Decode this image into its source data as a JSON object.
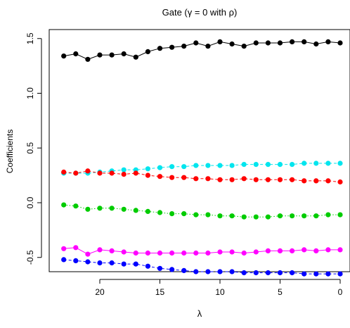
{
  "chart_data": {
    "type": "line",
    "title": "Gate (γ = 0 with ρ)",
    "xlabel": "λ",
    "ylabel": "Coefficients",
    "x_reversed": true,
    "xlim": [
      23,
      0
    ],
    "ylim": [
      -0.75,
      1.6
    ],
    "x_ticks": [
      20,
      15,
      10,
      5,
      0
    ],
    "x_tick_labels": [
      "20",
      "15",
      "10",
      "5",
      "0"
    ],
    "y_ticks": [
      -0.5,
      0.0,
      0.5,
      1.0,
      1.5
    ],
    "y_tick_labels": [
      "-0.5",
      "0.0",
      "0.5",
      "1.0",
      "1.5"
    ],
    "grid": false,
    "x": [
      23,
      22,
      21,
      20,
      19,
      18,
      17,
      16,
      15,
      14,
      13,
      12,
      11,
      10,
      9,
      8,
      7,
      6,
      5,
      4,
      3,
      2,
      1,
      0
    ],
    "series": [
      {
        "color": "#000000",
        "line_style": "solid",
        "values": [
          1.34,
          1.36,
          1.31,
          1.35,
          1.35,
          1.36,
          1.33,
          1.38,
          1.41,
          1.42,
          1.43,
          1.46,
          1.43,
          1.47,
          1.45,
          1.43,
          1.46,
          1.46,
          1.46,
          1.47,
          1.47,
          1.45,
          1.47,
          1.46
        ]
      },
      {
        "color": "#00e5ee",
        "line_style": "dashed",
        "values": [
          0.27,
          0.27,
          0.27,
          0.28,
          0.29,
          0.3,
          0.3,
          0.31,
          0.32,
          0.33,
          0.33,
          0.34,
          0.34,
          0.34,
          0.34,
          0.35,
          0.35,
          0.35,
          0.35,
          0.35,
          0.36,
          0.36,
          0.36,
          0.36
        ]
      },
      {
        "color": "#ff0000",
        "line_style": "dashed",
        "values": [
          0.28,
          0.27,
          0.29,
          0.27,
          0.27,
          0.26,
          0.27,
          0.25,
          0.24,
          0.23,
          0.23,
          0.22,
          0.22,
          0.21,
          0.21,
          0.22,
          0.21,
          0.21,
          0.21,
          0.21,
          0.2,
          0.2,
          0.2,
          0.19
        ]
      },
      {
        "color": "#00cc00",
        "line_style": "dotted",
        "values": [
          -0.02,
          -0.03,
          -0.06,
          -0.05,
          -0.05,
          -0.06,
          -0.07,
          -0.08,
          -0.09,
          -0.1,
          -0.1,
          -0.11,
          -0.11,
          -0.12,
          -0.12,
          -0.13,
          -0.13,
          -0.13,
          -0.12,
          -0.12,
          -0.12,
          -0.12,
          -0.11,
          -0.11
        ]
      },
      {
        "color": "#ff00ff",
        "line_style": "solid",
        "values": [
          -0.42,
          -0.41,
          -0.47,
          -0.43,
          -0.44,
          -0.45,
          -0.46,
          -0.46,
          -0.46,
          -0.46,
          -0.46,
          -0.46,
          -0.46,
          -0.45,
          -0.45,
          -0.46,
          -0.45,
          -0.44,
          -0.44,
          -0.44,
          -0.43,
          -0.44,
          -0.43,
          -0.43
        ]
      },
      {
        "color": "#0000ff",
        "line_style": "dashed",
        "values": [
          -0.52,
          -0.53,
          -0.54,
          -0.55,
          -0.55,
          -0.56,
          -0.56,
          -0.58,
          -0.6,
          -0.61,
          -0.62,
          -0.63,
          -0.63,
          -0.63,
          -0.63,
          -0.64,
          -0.64,
          -0.64,
          -0.64,
          -0.64,
          -0.65,
          -0.65,
          -0.65,
          -0.65
        ]
      }
    ]
  }
}
